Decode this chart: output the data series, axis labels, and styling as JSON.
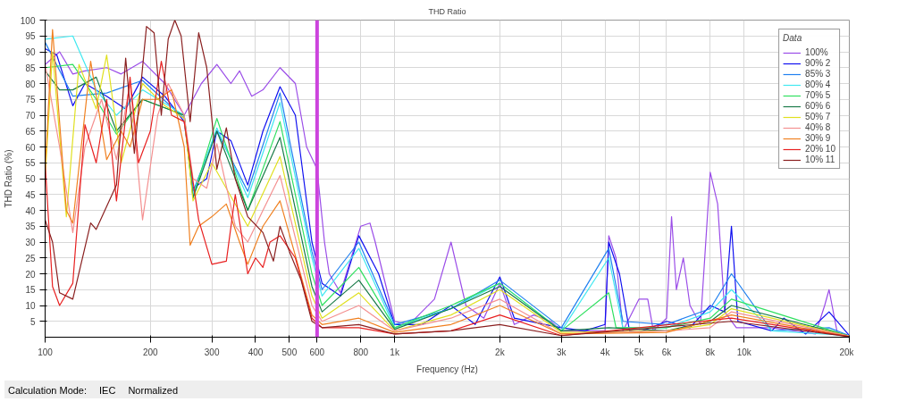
{
  "chart_data": {
    "type": "line",
    "title": "THD Ratio",
    "xlabel": "Frequency (Hz)",
    "ylabel": "THD Ratio (%)",
    "legend_title": "Data",
    "legend": "top right",
    "grid": true,
    "marker": "none",
    "line_style": "solid",
    "log": "x",
    "xlim": [
      100,
      20000
    ],
    "xticks": [
      100,
      200,
      300,
      400,
      500,
      600,
      800,
      {
        "value": 1000,
        "label": "1k"
      },
      {
        "value": 2000,
        "label": "2k"
      },
      {
        "value": 3000,
        "label": "3k"
      },
      {
        "value": 4000,
        "label": "4k"
      },
      {
        "value": 5000,
        "label": "5k"
      },
      {
        "value": 6000,
        "label": "6k"
      },
      {
        "value": 8000,
        "label": "8k"
      },
      {
        "value": 10000,
        "label": "10k"
      },
      {
        "value": 20000,
        "label": "20k"
      }
    ],
    "ylim": [
      0,
      100
    ],
    "yticks": [
      5,
      10,
      15,
      20,
      25,
      30,
      35,
      40,
      45,
      50,
      55,
      60,
      65,
      70,
      75,
      80,
      85,
      90,
      95,
      100
    ],
    "ref_lines": [
      {
        "axis": "x",
        "value": 600,
        "label": null,
        "color": "#cc44dd"
      }
    ],
    "annotations": [
      "Calculation Mode:",
      "IEC",
      "Normalized"
    ],
    "series": [
      {
        "name": "100%",
        "color": "#9b4de8",
        "x": [
          100,
          110,
          120,
          130,
          150,
          165,
          190,
          220,
          250,
          280,
          310,
          340,
          360,
          390,
          420,
          470,
          520,
          560,
          600,
          630,
          650,
          700,
          800,
          850,
          880,
          950,
          1000,
          1100,
          1300,
          1450,
          1600,
          1800,
          2000,
          2200,
          2500,
          2800,
          3000,
          3500,
          4000,
          4100,
          4300,
          4500,
          5000,
          5300,
          5500,
          6000,
          6200,
          6400,
          6700,
          7000,
          7500,
          8000,
          8400,
          8800,
          9500,
          10000,
          12000,
          16000,
          17000,
          17500,
          18500,
          20000
        ],
        "values": [
          86,
          90,
          83,
          84,
          85,
          83,
          87,
          80,
          70,
          80,
          86,
          80,
          84,
          76,
          78,
          85,
          80,
          60,
          53,
          30,
          20,
          14,
          35,
          36,
          30,
          15,
          5,
          4,
          12,
          30,
          10,
          6,
          17,
          4,
          7,
          5,
          2,
          2,
          2,
          32,
          25,
          2,
          12,
          12,
          2,
          6,
          38,
          15,
          25,
          10,
          4,
          52,
          42,
          8,
          3,
          3,
          3,
          1,
          10,
          15,
          1,
          0.5
        ]
      },
      {
        "name": "90% 2",
        "color": "#1010f0",
        "x": [
          100,
          108,
          120,
          130,
          150,
          170,
          190,
          220,
          250,
          265,
          290,
          310,
          340,
          380,
          420,
          470,
          520,
          580,
          620,
          700,
          790,
          900,
          1000,
          1200,
          1450,
          1700,
          2000,
          2200,
          2700,
          3000,
          3500,
          4000,
          4100,
          4400,
          4700,
          5000,
          6000,
          7000,
          8000,
          8800,
          9200,
          9600,
          12000,
          13000,
          15000,
          17500,
          20000
        ],
        "values": [
          91,
          89,
          73,
          80,
          76,
          72,
          82,
          76,
          68,
          47,
          50,
          65,
          62,
          48,
          65,
          79,
          70,
          30,
          17,
          13,
          32,
          20,
          4,
          4,
          10,
          4,
          19,
          6,
          4,
          3,
          2,
          4,
          30,
          20,
          2,
          1.5,
          5,
          3,
          10,
          8,
          35,
          5,
          2,
          6,
          1,
          8,
          0.5
        ]
      },
      {
        "name": "85% 3",
        "color": "#2080f0",
        "x": [
          100,
          120,
          150,
          190,
          250,
          265,
          310,
          380,
          470,
          580,
          620,
          790,
          1000,
          1450,
          2000,
          3000,
          4100,
          4500,
          6000,
          8000,
          9200,
          12000,
          17500,
          20000
        ],
        "values": [
          93,
          76,
          77,
          81,
          69,
          46,
          65,
          46,
          77,
          27,
          15,
          30,
          4,
          9,
          18,
          3,
          28,
          5,
          4,
          9,
          20,
          2,
          3,
          0.5
        ]
      },
      {
        "name": "80% 4",
        "color": "#40e8f0",
        "x": [
          100,
          120,
          140,
          160,
          190,
          250,
          265,
          310,
          380,
          470,
          580,
          620,
          790,
          1000,
          1450,
          2000,
          3000,
          4100,
          4500,
          6000,
          8000,
          9200,
          12000,
          20000
        ],
        "values": [
          94,
          95,
          78,
          70,
          78,
          70,
          45,
          66,
          44,
          74,
          25,
          13,
          28,
          3,
          9,
          17,
          2,
          25,
          3,
          3,
          8,
          15,
          2,
          0.5
        ]
      },
      {
        "name": "70% 5",
        "color": "#30e060",
        "x": [
          100,
          120,
          140,
          160,
          190,
          250,
          265,
          310,
          380,
          470,
          580,
          620,
          790,
          1000,
          1450,
          2000,
          3000,
          4100,
          4300,
          6000,
          8000,
          9200,
          20000
        ],
        "values": [
          85,
          86,
          75,
          64,
          75,
          70,
          44,
          69,
          40,
          68,
          20,
          10,
          22,
          3,
          10,
          17,
          2,
          14,
          3,
          3,
          6,
          12,
          0.3
        ]
      },
      {
        "name": "60% 6",
        "color": "#1a7a48",
        "x": [
          100,
          110,
          120,
          140,
          160,
          190,
          250,
          265,
          310,
          380,
          470,
          580,
          620,
          790,
          1000,
          1450,
          2000,
          3000,
          4100,
          6000,
          8000,
          9200,
          20000
        ],
        "values": [
          84,
          78,
          78,
          82,
          65,
          75,
          70,
          44,
          65,
          40,
          63,
          16,
          8,
          18,
          2.5,
          9,
          16,
          2,
          3,
          2,
          5,
          10,
          0.3
        ]
      },
      {
        "name": "50% 7",
        "color": "#e0e020",
        "x": [
          100,
          105,
          115,
          125,
          140,
          150,
          165,
          190,
          220,
          250,
          265,
          300,
          380,
          470,
          580,
          620,
          790,
          1000,
          1450,
          2000,
          3000,
          6000,
          8000,
          9200,
          20000
        ],
        "values": [
          50,
          90,
          38,
          86,
          72,
          89,
          55,
          80,
          73,
          69,
          43,
          55,
          35,
          57,
          13,
          6,
          14,
          2,
          7,
          15,
          1.5,
          2,
          4,
          9,
          0.3
        ]
      },
      {
        "name": "40% 8",
        "color": "#f49090",
        "x": [
          100,
          110,
          120,
          130,
          145,
          160,
          175,
          190,
          210,
          225,
          250,
          265,
          290,
          310,
          350,
          380,
          420,
          470,
          580,
          620,
          790,
          1000,
          1450,
          2000,
          3000,
          6000,
          8000,
          9200,
          20000
        ],
        "values": [
          86,
          60,
          33,
          60,
          75,
          56,
          80,
          37,
          70,
          80,
          70,
          50,
          47,
          61,
          35,
          30,
          40,
          51,
          10,
          5,
          10,
          2,
          6,
          12,
          1,
          2,
          3,
          8,
          0.3
        ]
      },
      {
        "name": "30% 9",
        "color": "#f08020",
        "x": [
          100,
          105,
          115,
          120,
          135,
          150,
          165,
          175,
          190,
          210,
          230,
          250,
          260,
          275,
          300,
          330,
          360,
          380,
          420,
          470,
          580,
          620,
          790,
          1000,
          1450,
          2000,
          3000,
          6000,
          9200,
          20000
        ],
        "values": [
          53,
          97,
          40,
          36,
          87,
          56,
          65,
          60,
          75,
          75,
          78,
          60,
          29,
          35,
          38,
          42,
          30,
          23,
          35,
          43,
          7,
          4,
          6,
          1.5,
          4,
          10,
          1,
          1.5,
          7,
          0.2
        ]
      },
      {
        "name": "20% 10",
        "color": "#e82020",
        "x": [
          100,
          105,
          110,
          120,
          130,
          140,
          150,
          160,
          175,
          185,
          200,
          215,
          230,
          250,
          275,
          300,
          330,
          350,
          380,
          400,
          420,
          440,
          470,
          520,
          580,
          620,
          790,
          1000,
          1450,
          2000,
          3000,
          9200,
          20000
        ],
        "values": [
          55,
          16,
          10,
          17,
          67,
          55,
          75,
          43,
          82,
          55,
          65,
          87,
          70,
          68,
          37,
          23,
          24,
          45,
          20,
          25,
          22,
          30,
          32,
          25,
          6,
          3,
          3,
          1,
          2,
          7,
          0.5,
          6,
          0.2
        ]
      },
      {
        "name": "10% 11",
        "color": "#8a2020",
        "x": [
          100,
          105,
          110,
          120,
          135,
          140,
          160,
          170,
          180,
          195,
          205,
          215,
          225,
          235,
          245,
          260,
          275,
          290,
          310,
          330,
          350,
          380,
          420,
          450,
          470,
          500,
          540,
          580,
          620,
          790,
          1000,
          1450,
          2000,
          3000,
          9200,
          20000
        ],
        "values": [
          37,
          30,
          14,
          12,
          36,
          34,
          48,
          88,
          58,
          98,
          96,
          70,
          94,
          100,
          95,
          68,
          96,
          85,
          53,
          66,
          50,
          38,
          33,
          24,
          35,
          27,
          18,
          5,
          3,
          4,
          1,
          2,
          4,
          0.5,
          5,
          0.2
        ]
      }
    ]
  }
}
